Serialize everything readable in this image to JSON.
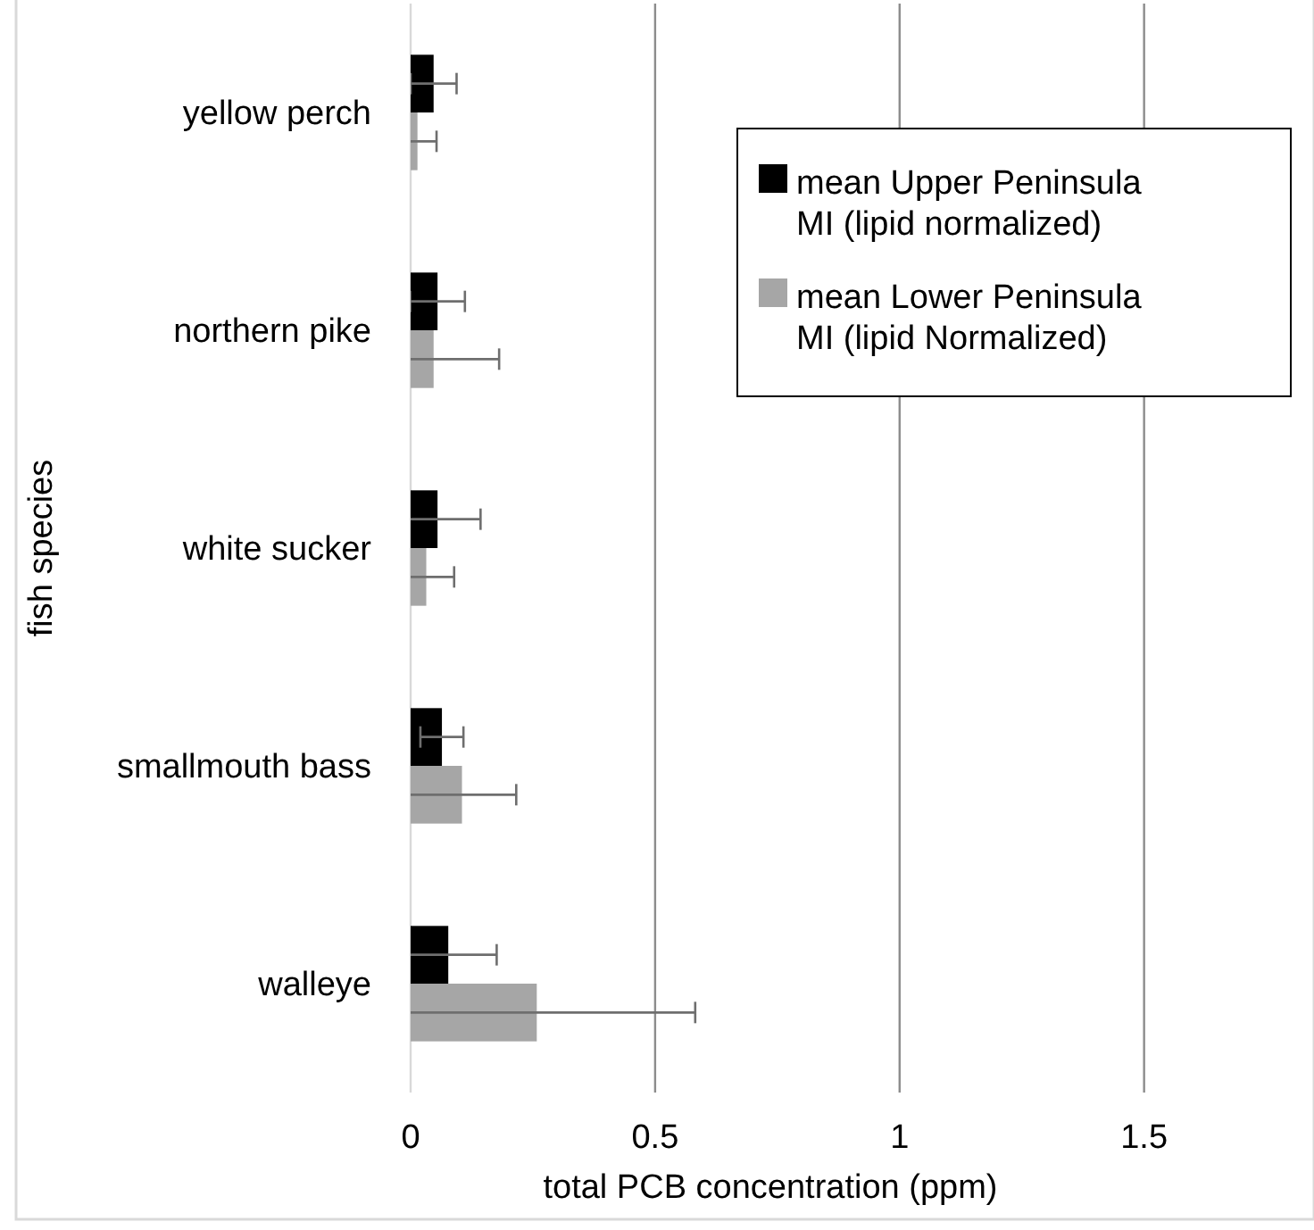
{
  "chart_data": {
    "type": "bar",
    "orientation": "horizontal",
    "xlabel": "total PCB concentration (ppm)",
    "ylabel": "fish species",
    "categories": [
      "yellow perch",
      "northern pike",
      "white sucker",
      "smallmouth bass",
      "walleye"
    ],
    "series": [
      {
        "name": "mean Upper Peninsula MI (lipid normalized)",
        "color": "#000000",
        "values": [
          0.047,
          0.055,
          0.055,
          0.064,
          0.077
        ],
        "errors": [
          0.047,
          0.056,
          0.088,
          0.044,
          0.099
        ]
      },
      {
        "name": "mean Lower Peninsula MI (lipid Normalized)",
        "color": "#a6a6a6",
        "values": [
          0.014,
          0.047,
          0.032,
          0.105,
          0.258
        ],
        "errors": [
          0.039,
          0.134,
          0.057,
          0.111,
          0.324
        ]
      }
    ],
    "xlim": [
      0,
      1.8
    ],
    "xticks": [
      0,
      0.5,
      1,
      1.5
    ],
    "grid": "x",
    "legend": "top right"
  }
}
